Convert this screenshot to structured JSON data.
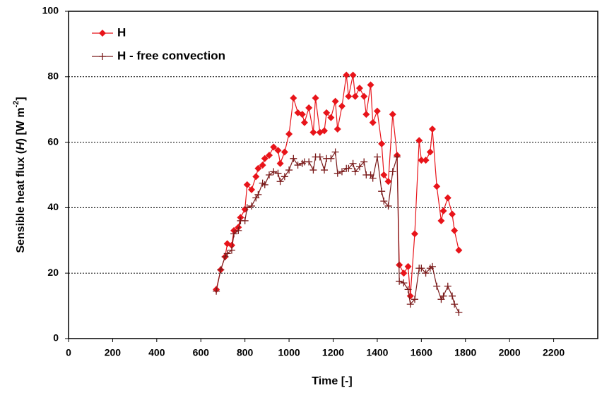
{
  "chart_data": {
    "type": "line",
    "ylabel": {
      "pre": "Sensible heat flux (",
      "var": "H",
      "mid": ") [W m",
      "sup": "-2",
      "post": "]"
    },
    "xlabel": "Time [-]",
    "x": [
      670,
      690,
      710,
      720,
      740,
      750,
      770,
      780,
      800,
      810,
      830,
      850,
      860,
      880,
      890,
      910,
      930,
      950,
      960,
      980,
      1000,
      1020,
      1040,
      1060,
      1070,
      1090,
      1110,
      1120,
      1140,
      1160,
      1170,
      1190,
      1210,
      1220,
      1240,
      1260,
      1270,
      1290,
      1300,
      1320,
      1340,
      1350,
      1370,
      1380,
      1400,
      1420,
      1430,
      1450,
      1470,
      1490,
      1500,
      1520,
      1540,
      1550,
      1570,
      1590,
      1600,
      1620,
      1640,
      1650,
      1670,
      1690,
      1700,
      1720,
      1740,
      1750,
      1770
    ],
    "series": [
      {
        "name": "H",
        "color": "#e8141a",
        "marker": "diamond",
        "values": [
          15,
          21,
          25,
          29,
          28.5,
          33,
          34,
          37,
          39.5,
          47,
          45.5,
          49.5,
          52,
          53,
          55,
          56,
          58.5,
          57.5,
          53.5,
          57,
          62.5,
          73.5,
          69,
          68.5,
          66,
          70.5,
          63,
          73.5,
          63,
          63.5,
          69,
          67.5,
          72.5,
          64,
          71,
          80.5,
          74,
          80.5,
          74,
          76.5,
          74,
          68.5,
          77.5,
          66,
          69.5,
          59.5,
          50,
          48,
          68.5,
          56,
          22.5,
          20,
          22,
          13,
          32,
          60.5,
          54.5,
          54.5,
          57,
          64,
          46.5,
          36,
          39,
          43,
          38,
          33,
          27
        ]
      },
      {
        "name": "H - free convection",
        "color": "#7a1a1a",
        "marker": "plus",
        "values": [
          14.5,
          21,
          25,
          26,
          27,
          32,
          33,
          36,
          36,
          40,
          40.5,
          43,
          44,
          47.5,
          47,
          50,
          51,
          50.5,
          48,
          49.5,
          51.5,
          55,
          53,
          53.5,
          54,
          54,
          51.5,
          55.5,
          55.5,
          51.5,
          55,
          55,
          57,
          50.5,
          51,
          52,
          52,
          53.5,
          51,
          52.5,
          54,
          50,
          50,
          49,
          55.5,
          45,
          42,
          40.5,
          51,
          55.5,
          17.5,
          17,
          15,
          10.5,
          12,
          21.5,
          21.5,
          20,
          21.5,
          22,
          16,
          12,
          13,
          16,
          13,
          10.5,
          8
        ]
      }
    ],
    "xlim": [
      0,
      2400
    ],
    "xticks": [
      0,
      200,
      400,
      600,
      800,
      1000,
      1200,
      1400,
      1600,
      1800,
      2000,
      2200
    ],
    "ylim": [
      0,
      100
    ],
    "yticks": [
      0,
      20,
      40,
      60,
      80,
      100
    ],
    "grid": true,
    "legend": "top-left"
  }
}
